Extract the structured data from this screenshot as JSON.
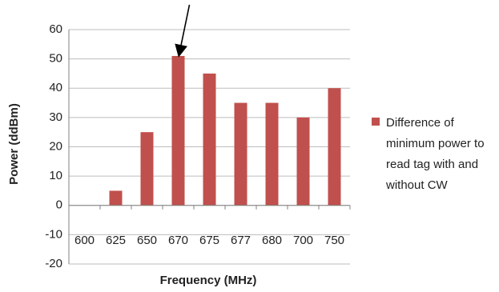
{
  "chart_data": {
    "type": "bar",
    "categories": [
      "600",
      "625",
      "650",
      "670",
      "675",
      "677",
      "680",
      "700",
      "750"
    ],
    "series": [
      {
        "name": "Difference of minimum power to read tag with and without CW",
        "values": [
          0,
          5,
          25,
          51,
          45,
          35,
          35,
          30,
          40
        ],
        "color": "#c0504d"
      }
    ],
    "yticks": [
      "60",
      "50",
      "40",
      "30",
      "20",
      "10",
      "0",
      "-10",
      "-20"
    ],
    "ylim": [
      -20,
      60
    ],
    "ystep": 10,
    "xlabel": "Frequency (MHz)",
    "ylabel": "Power (ddBm)",
    "legend": {
      "position": "right",
      "lines": [
        "Difference of",
        "minimum power to",
        "read tag with and",
        "without CW"
      ]
    },
    "grid": true,
    "annotation": {
      "type": "arrow",
      "target_category": "670"
    }
  }
}
